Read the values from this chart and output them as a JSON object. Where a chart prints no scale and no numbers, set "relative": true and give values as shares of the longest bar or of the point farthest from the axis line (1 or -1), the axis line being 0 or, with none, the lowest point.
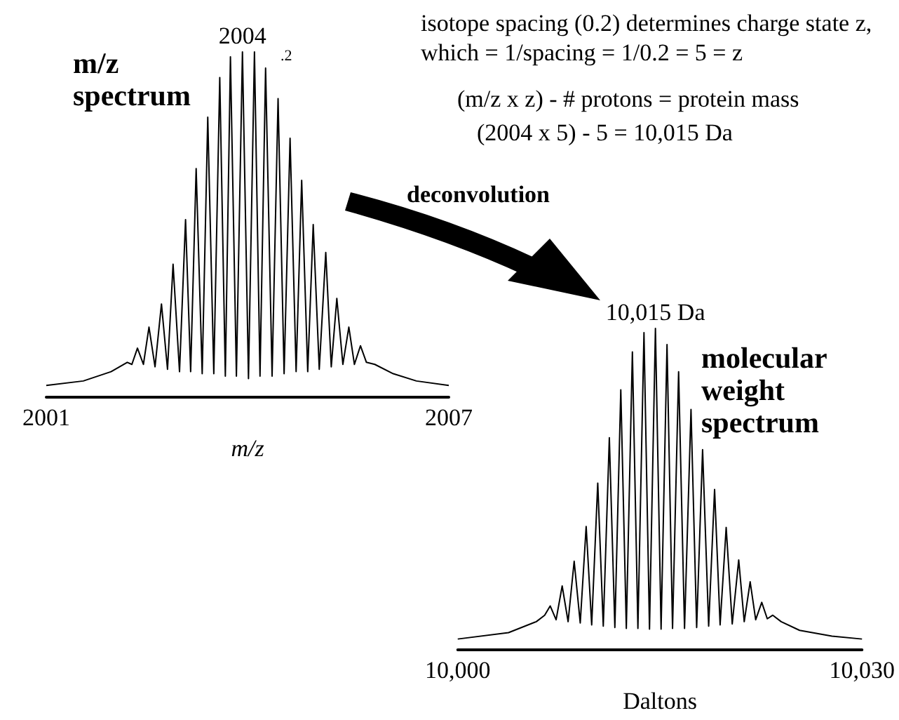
{
  "chart_data": [
    {
      "type": "line",
      "title": "m/z spectrum",
      "xlabel": "m/z",
      "relative": true,
      "color": "#000000",
      "xlim": [
        2001,
        2007
      ],
      "xticks": [
        2001,
        2007
      ],
      "x": [
        2001.0,
        2001.552,
        2001.966,
        2002.207,
        2002.276,
        2002.359,
        2002.448,
        2002.531,
        2002.621,
        2002.717,
        2002.807,
        2002.89,
        2002.986,
        2003.076,
        2003.152,
        2003.234,
        2003.324,
        2003.407,
        2003.497,
        2003.586,
        2003.669,
        2003.745,
        2003.834,
        2003.924,
        2004.014,
        2004.103,
        2004.186,
        2004.269,
        2004.366,
        2004.455,
        2004.545,
        2004.634,
        2004.724,
        2004.807,
        2004.897,
        2004.979,
        2005.069,
        2005.166,
        2005.248,
        2005.331,
        2005.421,
        2005.51,
        2005.593,
        2005.683,
        2005.772,
        2005.897,
        2006.172,
        2006.517,
        2007.0
      ],
      "values": [
        0.034,
        0.047,
        0.074,
        0.101,
        0.095,
        0.142,
        0.095,
        0.203,
        0.088,
        0.27,
        0.081,
        0.385,
        0.074,
        0.514,
        0.074,
        0.662,
        0.068,
        0.811,
        0.068,
        0.926,
        0.061,
        0.986,
        0.061,
        1.0,
        0.054,
        1.0,
        0.061,
        0.953,
        0.061,
        0.865,
        0.068,
        0.75,
        0.074,
        0.628,
        0.074,
        0.5,
        0.081,
        0.419,
        0.088,
        0.286,
        0.095,
        0.203,
        0.095,
        0.149,
        0.101,
        0.095,
        0.068,
        0.047,
        0.034
      ],
      "annotations": [
        {
          "text": "2004",
          "x": 2003.924,
          "y": 1
        },
        ".2",
        "isotope spacing (0.2) determines charge state z, which = 1/spacing = 1/0.2 = 5 = z",
        "(m/z x z) - # protons = protein mass",
        "(2004 x 5) - 5  = 10,015 Da",
        "deconvolution"
      ]
    },
    {
      "type": "line",
      "title": "molecular weight spectrum",
      "xlabel": "Daltons",
      "relative": true,
      "color": "#000000",
      "xlim": [
        10000,
        10030
      ],
      "xticks": [
        {
          "value": 10000,
          "label": "10,000"
        },
        {
          "value": 10030,
          "label": "10,030"
        }
      ],
      "x": [
        10000.0,
        10003.77,
        10005.83,
        10006.45,
        10006.86,
        10007.3,
        10007.75,
        10008.19,
        10008.64,
        10009.09,
        10009.53,
        10009.94,
        10010.39,
        10010.8,
        10011.25,
        10011.66,
        10012.1,
        10012.51,
        10012.96,
        10013.37,
        10013.82,
        10014.23,
        10014.67,
        10015.09,
        10015.53,
        10015.94,
        10016.39,
        10016.83,
        10017.31,
        10017.73,
        10018.17,
        10018.62,
        10019.06,
        10019.47,
        10019.92,
        10020.37,
        10020.85,
        10021.26,
        10021.7,
        10022.11,
        10022.56,
        10022.97,
        10023.38,
        10024.0,
        10025.37,
        10027.77,
        10030.0
      ],
      "values": [
        0.034,
        0.054,
        0.088,
        0.108,
        0.137,
        0.094,
        0.199,
        0.088,
        0.276,
        0.084,
        0.384,
        0.078,
        0.519,
        0.074,
        0.66,
        0.07,
        0.809,
        0.067,
        0.927,
        0.067,
        0.987,
        0.065,
        1.0,
        0.065,
        0.95,
        0.067,
        0.865,
        0.067,
        0.748,
        0.07,
        0.623,
        0.074,
        0.499,
        0.078,
        0.381,
        0.081,
        0.28,
        0.088,
        0.212,
        0.094,
        0.148,
        0.097,
        0.108,
        0.088,
        0.061,
        0.043,
        0.034
      ],
      "annotations": [
        {
          "text": "10,015 Da",
          "x": 10014.67,
          "y": 1
        }
      ]
    }
  ]
}
